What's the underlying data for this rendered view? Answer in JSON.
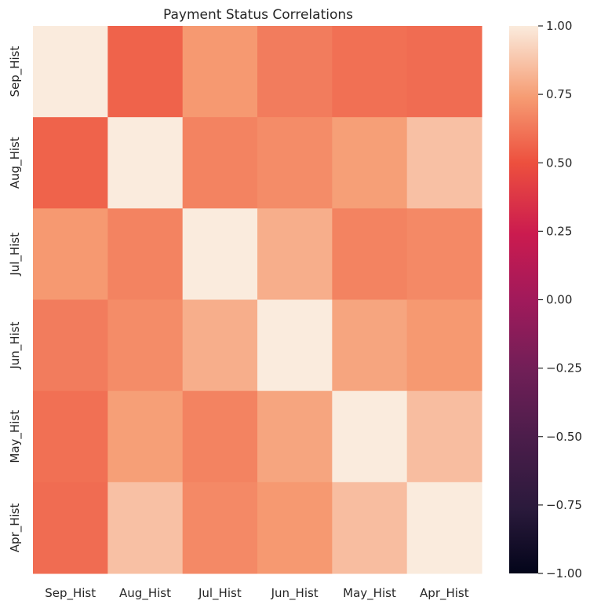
{
  "chart_data": {
    "type": "heatmap",
    "title": "Payment Status Correlations",
    "xlabel": "",
    "ylabel": "",
    "x_categories": [
      "Sep_Hist",
      "Aug_Hist",
      "Jul_Hist",
      "Jun_Hist",
      "May_Hist",
      "Apr_Hist"
    ],
    "y_categories": [
      "Sep_Hist",
      "Aug_Hist",
      "Jul_Hist",
      "Jun_Hist",
      "May_Hist",
      "Apr_Hist"
    ],
    "values": [
      [
        1.0,
        0.56,
        0.73,
        0.64,
        0.6,
        0.59
      ],
      [
        0.56,
        1.0,
        0.66,
        0.69,
        0.75,
        0.86
      ],
      [
        0.73,
        0.66,
        1.0,
        0.8,
        0.66,
        0.68
      ],
      [
        0.64,
        0.69,
        0.8,
        1.0,
        0.77,
        0.73
      ],
      [
        0.6,
        0.75,
        0.66,
        0.77,
        1.0,
        0.85
      ],
      [
        0.59,
        0.86,
        0.68,
        0.73,
        0.85,
        1.0
      ]
    ],
    "vmin": -1.0,
    "vmax": 1.0,
    "colormap": "rocket",
    "colorbar": {
      "ticks": [
        1.0,
        0.75,
        0.5,
        0.25,
        0.0,
        -0.25,
        -0.5,
        -0.75,
        -1.0
      ],
      "tick_labels": [
        "1.00",
        "0.75",
        "0.50",
        "0.25",
        "0.00",
        "−0.25",
        "−0.50",
        "−0.75",
        "−1.00"
      ],
      "position": "right"
    },
    "grid": false,
    "legend": "none"
  }
}
